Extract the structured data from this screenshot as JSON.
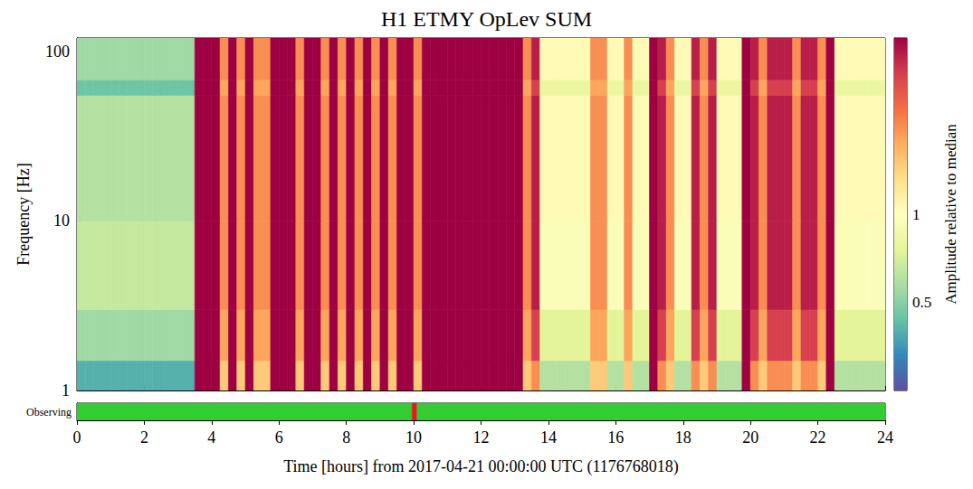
{
  "chart_data": {
    "type": "spectrogram",
    "title": "H1 ETMY OpLev SUM",
    "x_label": "Time [hours] from 2017-04-21 00:00:00 UTC (1176768018)",
    "y_label": "Frequency [Hz]",
    "xlim": [
      0,
      24
    ],
    "xticks": [
      0,
      2,
      4,
      6,
      8,
      10,
      12,
      14,
      16,
      18,
      20,
      22,
      24
    ],
    "ylim": [
      1,
      120
    ],
    "yticks": [
      1,
      10,
      100
    ],
    "log": "y",
    "time_bins": [
      0,
      0.25,
      0.5,
      0.75,
      1,
      1.25,
      1.5,
      1.75,
      2,
      2.25,
      2.5,
      2.75,
      3,
      3.25,
      3.5,
      3.75,
      4,
      4.25,
      4.5,
      4.75,
      5,
      5.25,
      5.5,
      5.75,
      6,
      6.25,
      6.5,
      6.75,
      7,
      7.25,
      7.5,
      7.75,
      8,
      8.25,
      8.5,
      8.75,
      9,
      9.25,
      9.5,
      9.75,
      10,
      10.25,
      10.5,
      10.75,
      11,
      11.25,
      11.5,
      11.75,
      12,
      12.25,
      12.5,
      12.75,
      13,
      13.25,
      13.5,
      13.75,
      14,
      14.25,
      14.5,
      14.75,
      15,
      15.25,
      15.5,
      15.75,
      16,
      16.25,
      16.5,
      16.75,
      17,
      17.25,
      17.5,
      17.75,
      18,
      18.25,
      18.5,
      18.75,
      19,
      19.25,
      19.5,
      19.75,
      20,
      20.25,
      20.5,
      20.75,
      21,
      21.25,
      21.5,
      21.75,
      22,
      22.25,
      22.5,
      22.75,
      23,
      23.25,
      23.5,
      23.75,
      24
    ],
    "frequency_bins": [
      1,
      1.5,
      3,
      10,
      55,
      68,
      120
    ],
    "amplitude": [
      [
        0.4,
        0.4,
        0.4,
        0.4,
        0.4,
        0.4,
        0.4,
        0.4,
        0.4,
        0.4,
        0.4,
        0.4,
        0.4,
        0.4,
        4,
        4,
        4,
        1.5,
        4,
        1.5,
        4,
        1.5,
        1.5,
        4,
        4,
        4,
        1.5,
        4,
        4,
        1.5,
        4,
        1.5,
        4,
        1.5,
        4,
        1.5,
        4,
        1.5,
        4,
        4,
        1.5,
        4,
        4,
        4,
        4,
        4,
        4,
        4,
        4,
        4,
        4,
        4,
        4,
        1.5,
        2,
        0.6,
        0.6,
        0.6,
        0.6,
        0.6,
        0.6,
        1.5,
        1.5,
        0.6,
        0.6,
        1.5,
        0.6,
        0.6,
        4,
        2,
        1.5,
        0.6,
        0.6,
        2,
        1.5,
        2,
        0.6,
        0.6,
        0.6,
        4,
        2,
        1.5,
        2,
        2,
        2,
        1.5,
        2,
        2,
        1.5,
        4,
        0.6,
        0.6,
        0.6,
        0.6,
        0.6,
        0.6
      ],
      [
        0.55,
        0.55,
        0.55,
        0.55,
        0.55,
        0.55,
        0.55,
        0.55,
        0.55,
        0.55,
        0.55,
        0.55,
        0.55,
        0.55,
        4,
        4,
        4,
        1.8,
        4,
        1.8,
        4,
        1.8,
        1.8,
        4,
        4,
        4,
        1.8,
        4,
        4,
        1.8,
        4,
        1.8,
        4,
        1.8,
        4,
        1.8,
        4,
        1.8,
        4,
        4,
        1.8,
        4,
        4,
        4,
        4,
        4,
        4,
        4,
        4,
        4,
        4,
        4,
        4,
        1.8,
        3,
        0.75,
        0.75,
        0.75,
        0.75,
        0.75,
        0.75,
        1.8,
        1.8,
        0.75,
        0.75,
        1.8,
        0.75,
        0.75,
        4,
        3,
        1.8,
        0.75,
        0.75,
        3,
        1.8,
        3,
        0.75,
        0.75,
        0.75,
        4,
        3,
        1.8,
        3,
        3,
        3,
        1.8,
        3,
        3,
        1.8,
        4,
        0.75,
        0.75,
        0.75,
        0.75,
        0.75,
        0.75
      ],
      [
        0.65,
        0.65,
        0.65,
        0.65,
        0.65,
        0.65,
        0.65,
        0.65,
        0.65,
        0.65,
        0.65,
        0.65,
        0.65,
        0.65,
        4,
        4,
        4,
        2,
        4,
        2,
        4,
        2,
        2,
        4,
        4,
        4,
        2,
        4,
        4,
        2,
        4,
        2,
        4,
        2,
        4,
        2,
        4,
        2,
        4,
        4,
        2,
        4,
        4,
        4,
        4,
        4,
        4,
        4,
        4,
        4,
        4,
        4,
        4,
        2,
        3.5,
        0.95,
        0.95,
        0.95,
        0.95,
        0.95,
        0.95,
        2,
        2,
        0.95,
        0.95,
        2,
        0.95,
        0.95,
        4,
        3.5,
        2,
        0.95,
        0.95,
        3.5,
        2,
        3.5,
        0.95,
        0.95,
        0.95,
        4,
        3.5,
        2,
        3.5,
        3.5,
        3.5,
        2,
        3.5,
        3.5,
        2,
        4,
        0.95,
        0.95,
        0.95,
        0.95,
        0.95,
        0.95
      ],
      [
        0.6,
        0.6,
        0.6,
        0.6,
        0.6,
        0.6,
        0.6,
        0.6,
        0.6,
        0.6,
        0.6,
        0.6,
        0.6,
        0.6,
        4,
        4,
        4,
        2,
        4,
        2,
        4,
        2,
        2,
        4,
        4,
        4,
        2,
        4,
        4,
        2,
        4,
        2,
        4,
        2,
        4,
        2,
        4,
        2,
        4,
        4,
        2,
        4,
        4,
        4,
        4,
        4,
        4,
        4,
        4,
        4,
        4,
        4,
        4,
        2,
        3.5,
        1.05,
        1.05,
        1.05,
        1.05,
        1.05,
        1.05,
        2,
        2,
        1.05,
        1.05,
        2,
        1.05,
        1.05,
        4,
        3.5,
        2,
        1.05,
        1.05,
        3.5,
        2,
        3.5,
        1.05,
        1.05,
        1.05,
        4,
        3.5,
        2,
        3.5,
        3.5,
        3.5,
        2,
        3.5,
        3.5,
        2,
        4,
        1.05,
        1.05,
        1.05,
        1.05,
        1.05,
        1.05
      ],
      [
        0.45,
        0.45,
        0.45,
        0.45,
        0.45,
        0.45,
        0.45,
        0.45,
        0.45,
        0.45,
        0.45,
        0.45,
        0.45,
        0.45,
        4,
        4,
        4,
        1.8,
        4,
        1.8,
        4,
        1.8,
        1.8,
        4,
        4,
        4,
        1.8,
        4,
        4,
        1.8,
        4,
        1.8,
        4,
        1.8,
        4,
        1.8,
        4,
        1.8,
        4,
        4,
        1.8,
        4,
        4,
        4,
        4,
        4,
        4,
        4,
        4,
        4,
        4,
        4,
        4,
        1.8,
        3,
        0.8,
        0.8,
        0.8,
        0.8,
        0.8,
        0.8,
        1.8,
        1.8,
        0.8,
        0.8,
        1.8,
        0.8,
        0.8,
        4,
        3,
        1.8,
        0.8,
        0.8,
        3,
        1.8,
        3,
        0.8,
        0.8,
        0.8,
        4,
        3,
        1.8,
        3,
        3,
        3,
        1.8,
        3,
        3,
        1.8,
        4,
        0.8,
        0.8,
        0.8,
        0.8,
        0.8,
        0.8
      ],
      [
        0.55,
        0.55,
        0.55,
        0.55,
        0.55,
        0.55,
        0.55,
        0.55,
        0.55,
        0.55,
        0.55,
        0.55,
        0.55,
        0.55,
        4,
        4,
        4,
        2,
        4,
        2,
        4,
        2,
        2,
        4,
        4,
        4,
        2,
        4,
        4,
        2,
        4,
        2,
        4,
        2,
        4,
        2,
        4,
        2,
        4,
        4,
        2,
        4,
        4,
        4,
        4,
        4,
        4,
        4,
        4,
        4,
        4,
        4,
        4,
        2,
        3.5,
        1.05,
        1.05,
        1.05,
        1.05,
        1.05,
        1.05,
        2,
        2,
        1.05,
        1.05,
        2,
        1.05,
        1.05,
        4,
        3.5,
        2,
        1.05,
        1.05,
        3.5,
        2,
        3.5,
        1.05,
        1.05,
        1.05,
        4,
        3.5,
        2,
        3.5,
        3.5,
        3.5,
        2,
        3.5,
        3.5,
        2,
        4,
        1.05,
        1.05,
        1.05,
        1.05,
        1.05,
        1.05
      ]
    ],
    "colorbar": {
      "label": "Amplitude relative to median",
      "lim": [
        0.25,
        4
      ],
      "ticks": [
        0.5,
        1
      ],
      "log": true
    },
    "segments": {
      "label": "Observing",
      "bins": [
        {
          "start": 0,
          "end": 9.95,
          "color": "#33cc33"
        },
        {
          "start": 9.95,
          "end": 10.1,
          "color": "#e31a1c"
        },
        {
          "start": 10.1,
          "end": 24,
          "color": "#33cc33"
        }
      ]
    }
  }
}
